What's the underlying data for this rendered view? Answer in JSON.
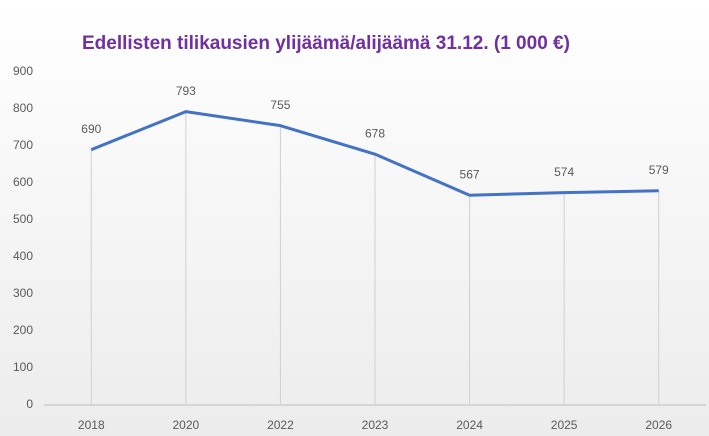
{
  "chart_data": {
    "type": "line",
    "title": "Edellisten tilikausien ylijäämä/alijäämä 31.12. (1 000 €)",
    "categories": [
      "2018",
      "2020",
      "2022",
      "2023",
      "2024",
      "2025",
      "2026"
    ],
    "values": [
      690,
      793,
      755,
      678,
      567,
      574,
      579
    ],
    "color": "#4472c4",
    "ylim": [
      0,
      900
    ],
    "yticks": [
      0,
      100,
      200,
      300,
      400,
      500,
      600,
      700,
      800,
      900
    ],
    "grid": false,
    "drop_lines": true
  }
}
